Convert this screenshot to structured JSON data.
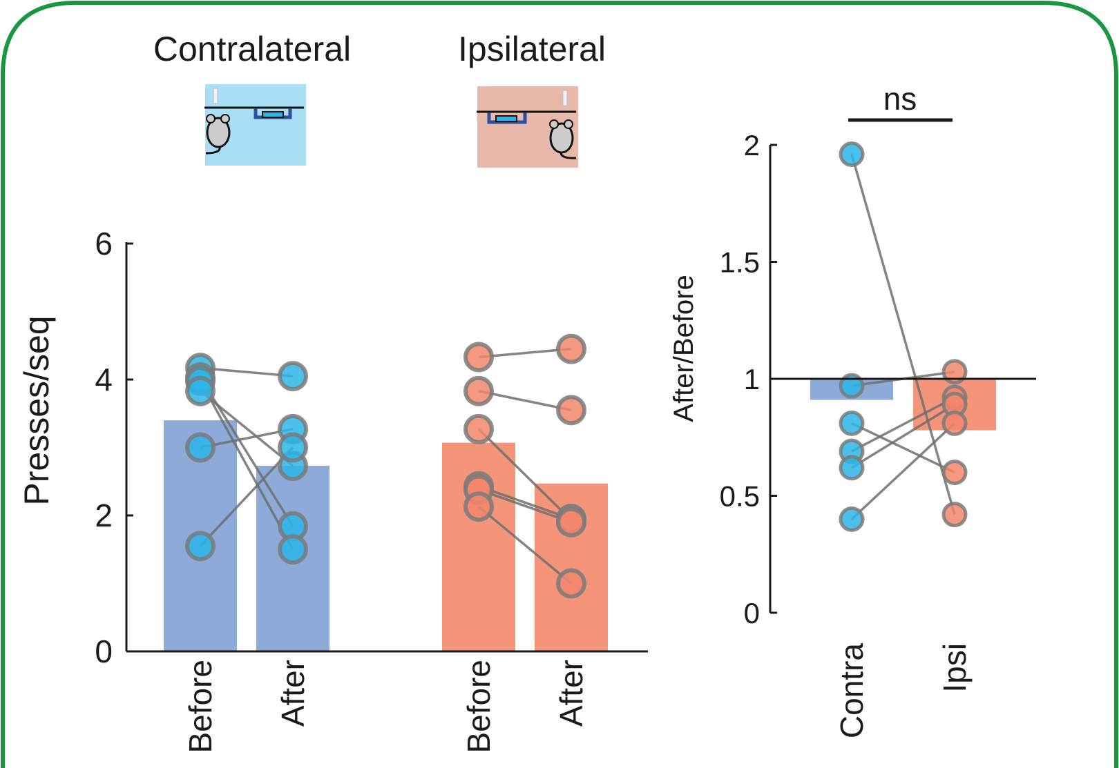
{
  "panel_titles": {
    "contra": "Contralateral",
    "ipsi": "Ipsilateral"
  },
  "colors": {
    "frame": "#1a9641",
    "contra_bar": "#8eaad9",
    "ipsi_bar": "#f4957a",
    "contra_dot": "#2bb5e8",
    "contra_dot_dark": "#119fd9",
    "ipsi_dot": "#f3866a",
    "ipsi_dot_dark": "#e9412b",
    "contra_box": "#a8def6",
    "ipsi_box": "#e8b8aa"
  },
  "chart_data": [
    {
      "type": "bar",
      "ylabel": "Presses/seq",
      "ylim": [
        0,
        6
      ],
      "yticks": [
        0,
        2,
        4,
        6
      ],
      "categories": [
        "Before",
        "After",
        "Before",
        "After"
      ],
      "groups": [
        "Contralateral",
        "Ipsilateral"
      ],
      "bar_values": [
        3.4,
        2.73,
        3.07,
        2.47
      ],
      "paired": [
        {
          "group": "Contralateral",
          "before": [
            4.17,
            4.03,
            3.98,
            3.83,
            3.0,
            1.55
          ],
          "after": [
            4.05,
            1.84,
            1.5,
            2.73,
            3.27,
            3.0
          ]
        },
        {
          "group": "Ipsilateral",
          "before": [
            4.33,
            3.83,
            3.27,
            2.43,
            2.38,
            2.13
          ],
          "after": [
            4.45,
            3.55,
            1.93,
            1.95,
            1.9,
            1.0
          ]
        }
      ]
    },
    {
      "type": "bar",
      "ylabel": "After/Before",
      "ylim": [
        0,
        2
      ],
      "yticks": [
        0,
        0.5,
        1,
        1.5,
        2
      ],
      "ytick_labels": [
        "0",
        "0.5",
        "1",
        "1.5",
        "2"
      ],
      "categories": [
        "Contra",
        "Ipsi"
      ],
      "bar_values": [
        0.91,
        0.78
      ],
      "reference_line": 1,
      "significance": "ns",
      "paired": {
        "contra": [
          1.96,
          0.97,
          0.81,
          0.69,
          0.62,
          0.4
        ],
        "ipsi": [
          0.42,
          1.03,
          0.6,
          0.92,
          0.89,
          0.81
        ]
      }
    }
  ]
}
